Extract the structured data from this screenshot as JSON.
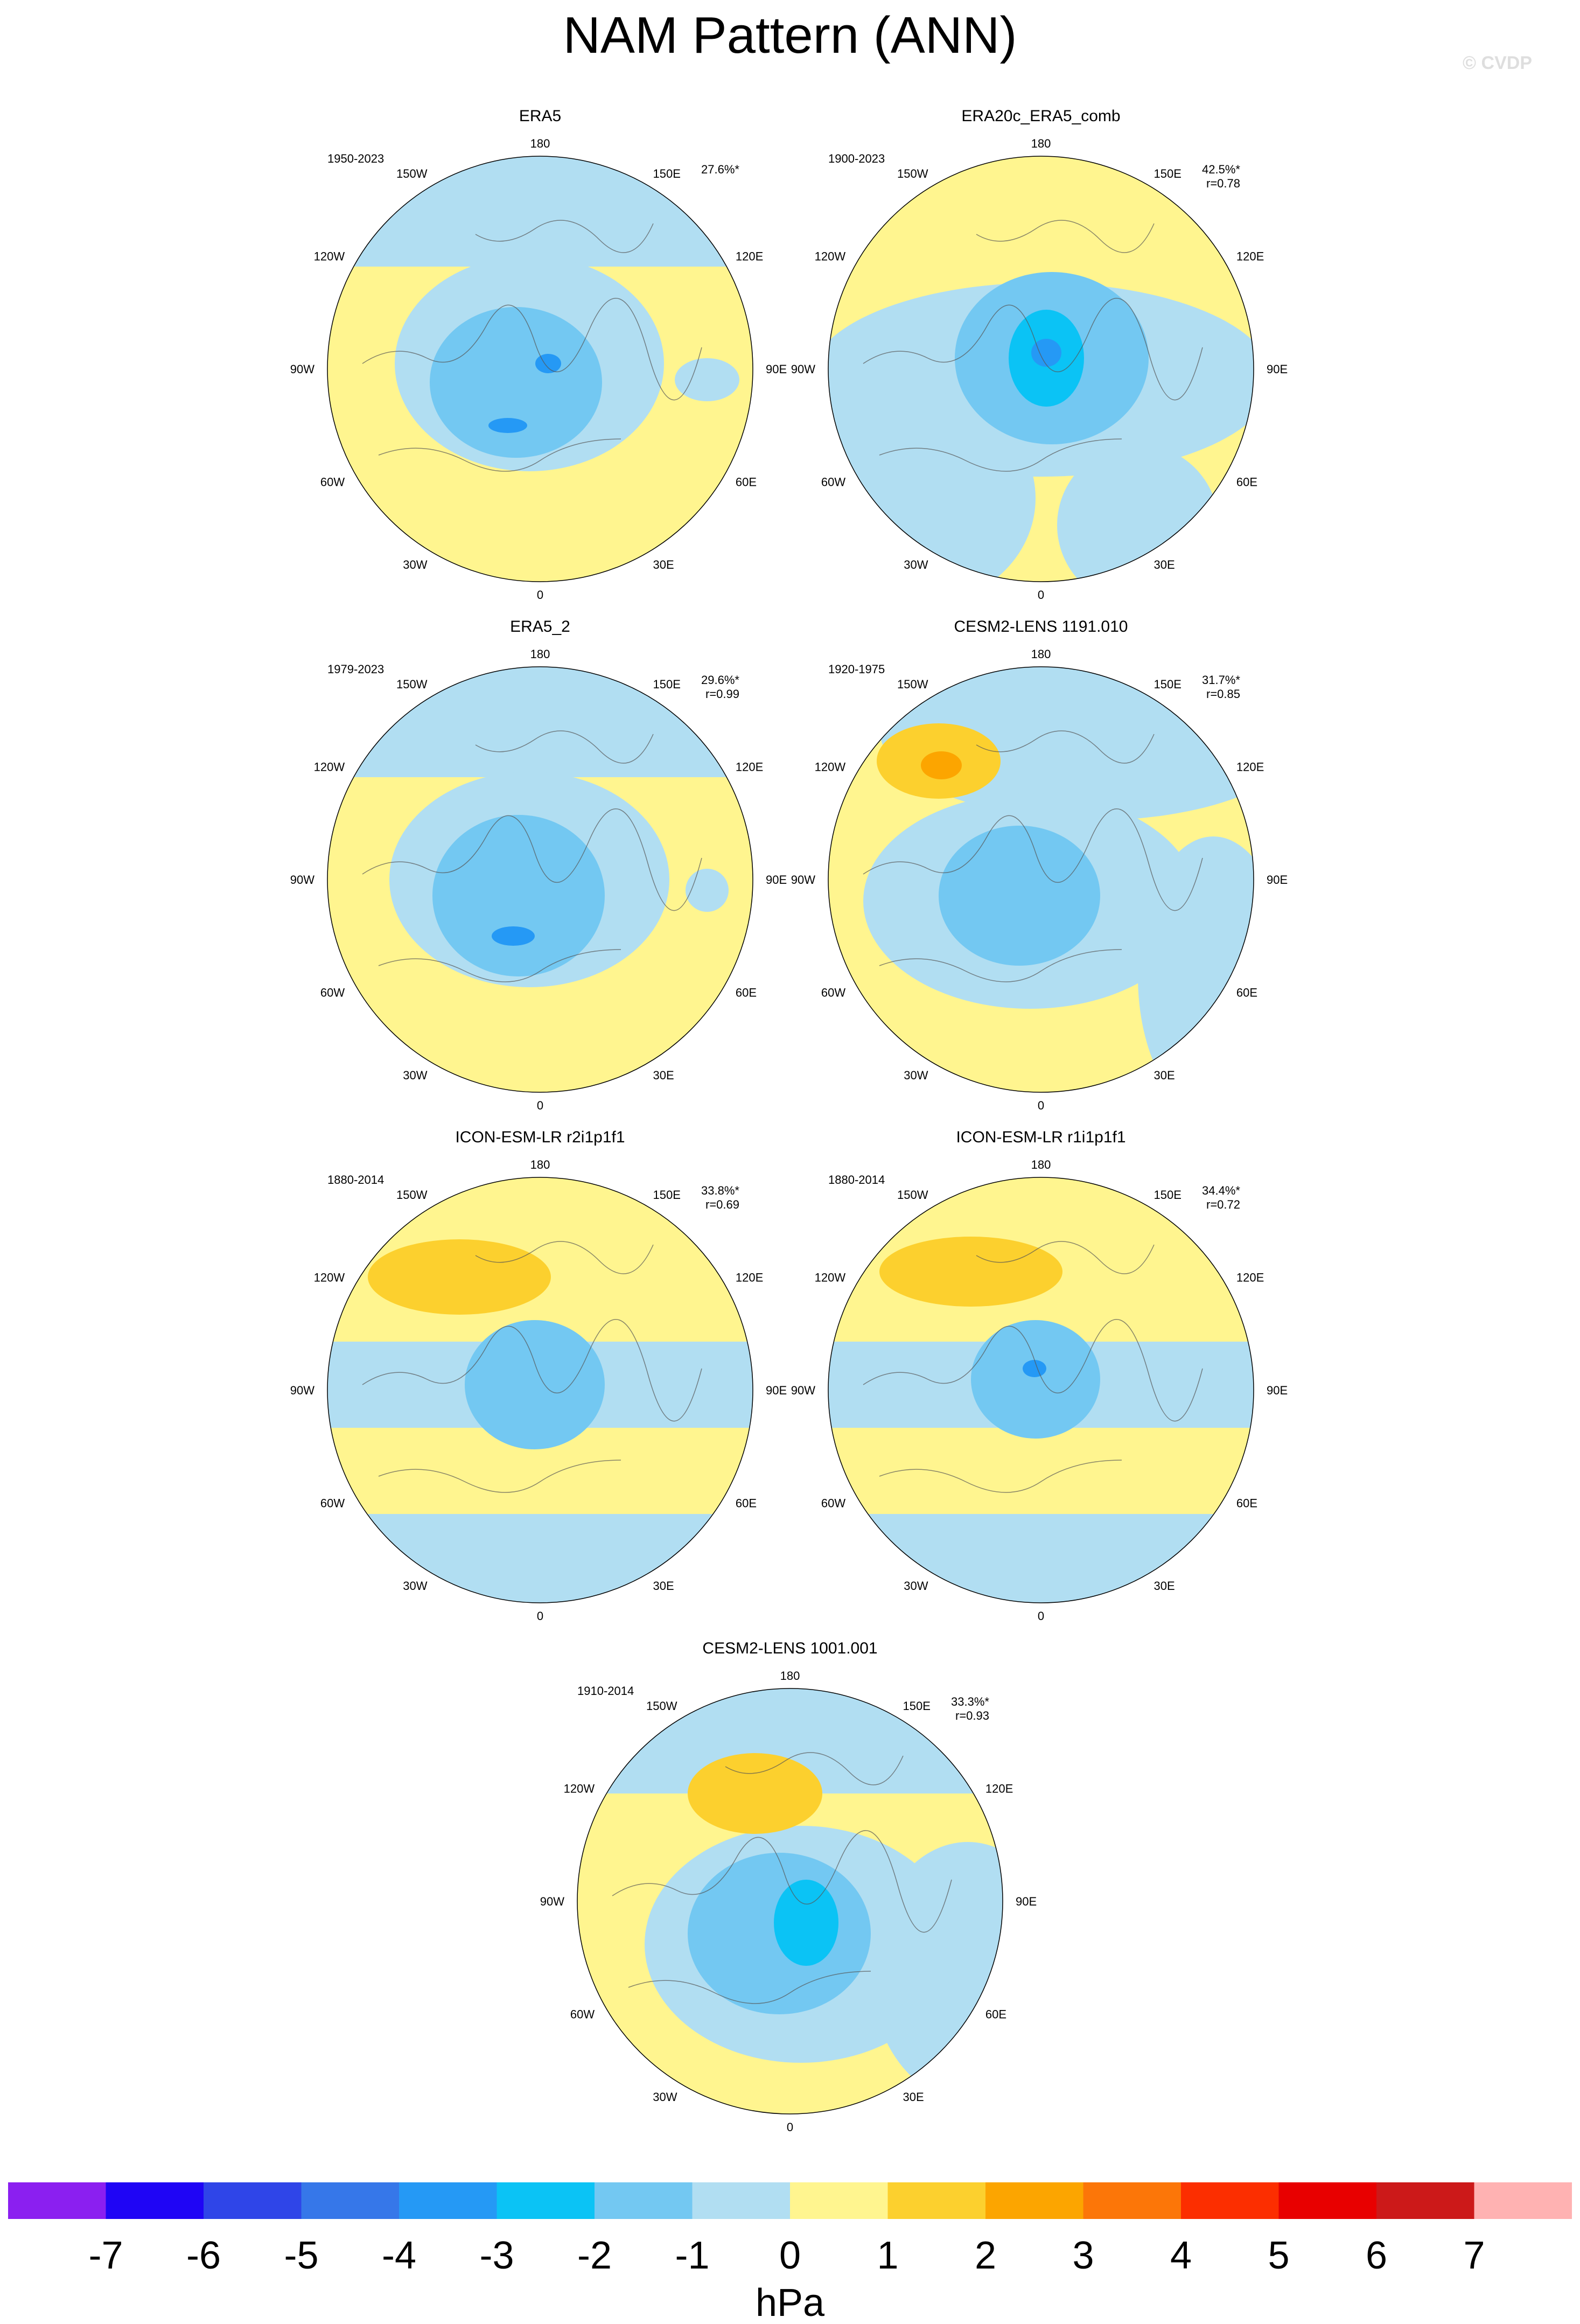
{
  "title": "NAM Pattern (ANN)",
  "watermark": "© CVDP",
  "chart_data": {
    "type": "heatmap",
    "projection": "polar stereographic, Northern Hemisphere",
    "units": "hPa",
    "colorbar": {
      "ticks": [
        "-7",
        "-6",
        "-5",
        "-4",
        "-3",
        "-2",
        "-1",
        "0",
        "1",
        "2",
        "3",
        "4",
        "5",
        "6",
        "7"
      ],
      "colors": [
        "#8b1ff0",
        "#1f05f5",
        "#2f45e8",
        "#3677e9",
        "#2599f5",
        "#0bc3f5",
        "#73c8f2",
        "#b1def2",
        "#fff58f",
        "#fcd02e",
        "#fca500",
        "#fc7608",
        "#fc2e00",
        "#e80000",
        "#cc1919",
        "#ffb2b2"
      ]
    },
    "lon_labels": [
      "180",
      "150E",
      "120E",
      "90E",
      "60E",
      "30E",
      "0",
      "30W",
      "60W",
      "90W",
      "120W",
      "150W"
    ],
    "panels": [
      {
        "title": "ERA5",
        "years": "1950-2023",
        "pct": "27.6%*",
        "r": ""
      },
      {
        "title": "ERA20c_ERA5_comb",
        "years": "1900-2023",
        "pct": "42.5%*",
        "r": "r=0.78"
      },
      {
        "title": "ERA5_2",
        "years": "1979-2023",
        "pct": "29.6%*",
        "r": "r=0.99"
      },
      {
        "title": "CESM2-LENS 1191.010",
        "years": "1920-1975",
        "pct": "31.7%*",
        "r": "r=0.85"
      },
      {
        "title": "ICON-ESM-LR r2i1p1f1",
        "years": "1880-2014",
        "pct": "33.8%*",
        "r": "r=0.69"
      },
      {
        "title": "ICON-ESM-LR r1i1p1f1",
        "years": "1880-2014",
        "pct": "34.4%*",
        "r": "r=0.72"
      },
      {
        "title": "CESM2-LENS 1001.001",
        "years": "1910-2014",
        "pct": "33.3%*",
        "r": "r=0.93"
      }
    ]
  }
}
